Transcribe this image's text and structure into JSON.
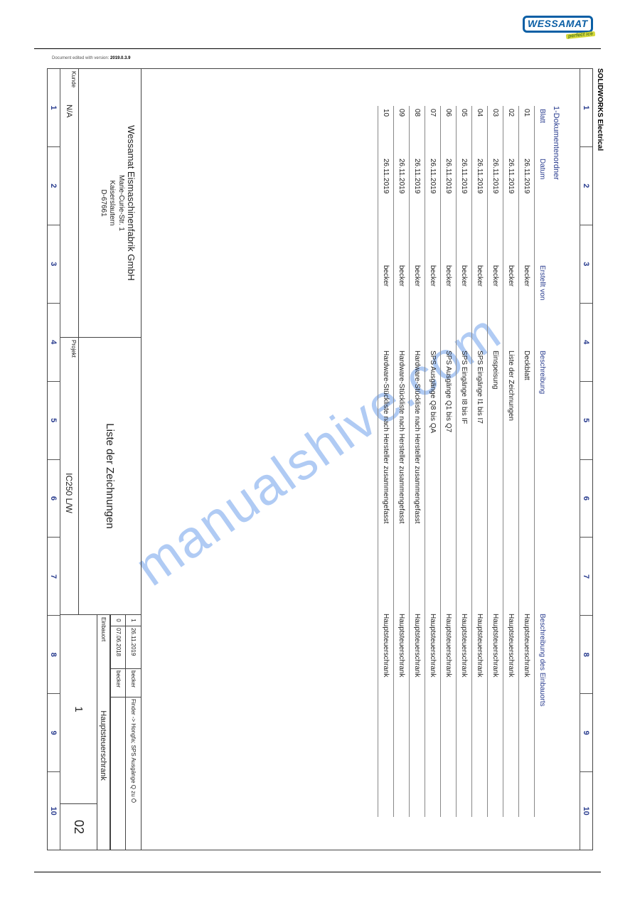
{
  "brand": {
    "name": "WESSAMAT",
    "tagline": "perfect ice",
    "brand_color": "#0b5fa5",
    "tag_color": "#5a7b1e",
    "tag_bg": "#d6d93a"
  },
  "software_label": "SOLIDWORKS Electrical",
  "watermark": "manualshive.com",
  "ruler": {
    "count": 10,
    "labels": [
      "1",
      "2",
      "3",
      "4",
      "5",
      "6",
      "7",
      "8",
      "9",
      "10"
    ],
    "color": "#2a3d8f"
  },
  "drawing_list": {
    "folder_label": "1-Dokumentenordner",
    "header_color": "#2a3d8f",
    "columns": {
      "blatt": "Blatt",
      "datum": "Datum",
      "erstellt_von": "Erstellt von",
      "beschreibung": "Beschreibung",
      "einbauort": "Beschreibung des Einbauorts"
    },
    "rows": [
      {
        "blatt": "01",
        "datum": "26.11.2019",
        "von": "becker",
        "besch": "Deckblatt",
        "ort": "Hauptsteuerschrank"
      },
      {
        "blatt": "02",
        "datum": "26.11.2019",
        "von": "becker",
        "besch": "Liste der Zeichnungen",
        "ort": "Hauptsteuerschrank"
      },
      {
        "blatt": "03",
        "datum": "26.11.2019",
        "von": "becker",
        "besch": "Einspeisung",
        "ort": "Hauptsteuerschrank"
      },
      {
        "blatt": "04",
        "datum": "26.11.2019",
        "von": "becker",
        "besch": "SPS Eingänge I1 bis I7",
        "ort": "Hauptsteuerschrank"
      },
      {
        "blatt": "05",
        "datum": "26.11.2019",
        "von": "becker",
        "besch": "SPS Eingänge I8 bis IF",
        "ort": "Hauptsteuerschrank"
      },
      {
        "blatt": "06",
        "datum": "26.11.2019",
        "von": "becker",
        "besch": "SPS Ausgänge Q1 bis Q7",
        "ort": "Hauptsteuerschrank"
      },
      {
        "blatt": "07",
        "datum": "26.11.2019",
        "von": "becker",
        "besch": "SPS Ausgänge Q8 bis QA",
        "ort": "Hauptsteuerschrank"
      },
      {
        "blatt": "08",
        "datum": "26.11.2019",
        "von": "becker",
        "besch": "Hardware-Stückliste nach Hersteller zusammengefasst",
        "ort": "Hauptsteuerschrank"
      },
      {
        "blatt": "09",
        "datum": "26.11.2019",
        "von": "becker",
        "besch": "Hardware-Stückliste nach Hersteller zusammengefasst",
        "ort": "Hauptsteuerschrank"
      },
      {
        "blatt": "10",
        "datum": "26.11.2019",
        "von": "becker",
        "besch": "Hardware-Stückliste nach Hersteller zusammengefasst",
        "ort": "Hauptsteuerschrank"
      }
    ]
  },
  "titleblock": {
    "company": {
      "name": "Wessamat Eismaschinenfabrik GmbH",
      "street": "Marie-Curie-Str. 1",
      "city": "Kaiserslautern",
      "postal": "D-67661"
    },
    "kunde_label": "Kunde",
    "kunde_value": "N/A",
    "center_title": "Liste der Zeichnungen",
    "projekt_label": "Projekt",
    "projekt_value": "IC250 L/W",
    "revisions": [
      {
        "rev": "1",
        "date": "26.11.2019",
        "by": "becker",
        "note": "Finder -> Hongfa; SPS Ausgänge Q zu Ö"
      },
      {
        "rev": "0",
        "date": "07.06.2018",
        "by": "becker",
        "note": ""
      }
    ],
    "einbauort_label": "Einbauort",
    "einbauort_value": "Hauptsteuerschrank",
    "doc_book": "1",
    "page_no": "02"
  },
  "edit_note": {
    "prefix": "Document edited with version:",
    "version": "2019.0.3.9"
  }
}
